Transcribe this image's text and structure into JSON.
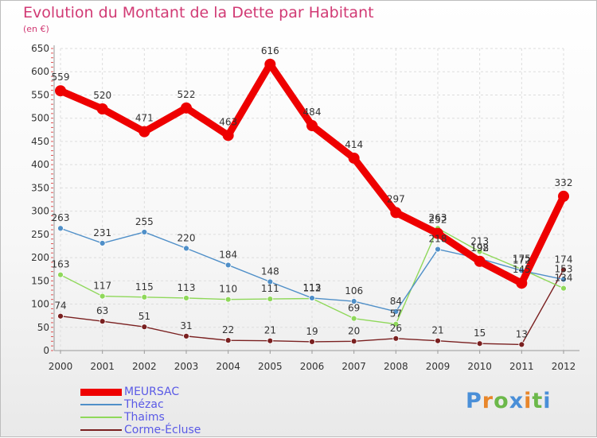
{
  "page": {
    "title": "Evolution du Montant de la Dette par Habitant",
    "unit": "(en €)",
    "brand": "Proxiti",
    "brand_colors": [
      "#4a8fd8",
      "#e8862a",
      "#6cb84a",
      "#4a8fd8",
      "#e8862a",
      "#6cb84a",
      "#4a8fd8"
    ]
  },
  "chart_data": {
    "type": "line",
    "title": "Evolution du Montant de la Dette par Habitant",
    "subtitle": "(en €)",
    "xlabel": "",
    "ylabel": "",
    "ylim": [
      0,
      650
    ],
    "yticks": [
      0,
      50,
      100,
      150,
      200,
      250,
      300,
      350,
      400,
      450,
      500,
      550,
      600,
      650
    ],
    "grid": true,
    "legend": "bottom-left",
    "x": [
      "2000",
      "2001",
      "2002",
      "2003",
      "2004",
      "2005",
      "2006",
      "2007",
      "2008",
      "2009",
      "2010",
      "2011",
      "2012"
    ],
    "series": [
      {
        "name": "MEURSAC",
        "color": "#ee0000",
        "values": [
          559,
          520,
          471,
          522,
          463,
          616,
          484,
          414,
          297,
          252,
          192,
          145,
          332
        ],
        "labels": [
          "559",
          "520",
          "471",
          "522",
          "463",
          "616",
          "484",
          "414",
          "297",
          "252",
          "192",
          "145",
          "332"
        ]
      },
      {
        "name": "Thézac",
        "color": "#4f8fc8",
        "values": [
          263,
          231,
          255,
          220,
          184,
          148,
          113,
          106,
          84,
          218,
          198,
          172,
          153
        ],
        "labels": [
          "263",
          "231",
          "255",
          "220",
          "184",
          "148",
          "113",
          "106",
          "84",
          "218",
          "198",
          "172",
          "153"
        ]
      },
      {
        "name": "Thaims",
        "color": "#8fd85a",
        "values": [
          163,
          117,
          115,
          113,
          110,
          111,
          112,
          69,
          57,
          263,
          213,
          175,
          134
        ],
        "labels": [
          "163",
          "117",
          "115",
          "113",
          "110",
          "111",
          "112",
          "69",
          "57",
          "263",
          "213",
          "175",
          "134"
        ]
      },
      {
        "name": "Corme-Écluse",
        "color": "#7a2020",
        "values": [
          74,
          63,
          51,
          31,
          22,
          21,
          19,
          20,
          26,
          21,
          15,
          13,
          174
        ],
        "labels": [
          "74",
          "63",
          "51",
          "31",
          "22",
          "21",
          "19",
          "20",
          "26",
          "21",
          "15",
          "13",
          "174"
        ]
      }
    ]
  }
}
